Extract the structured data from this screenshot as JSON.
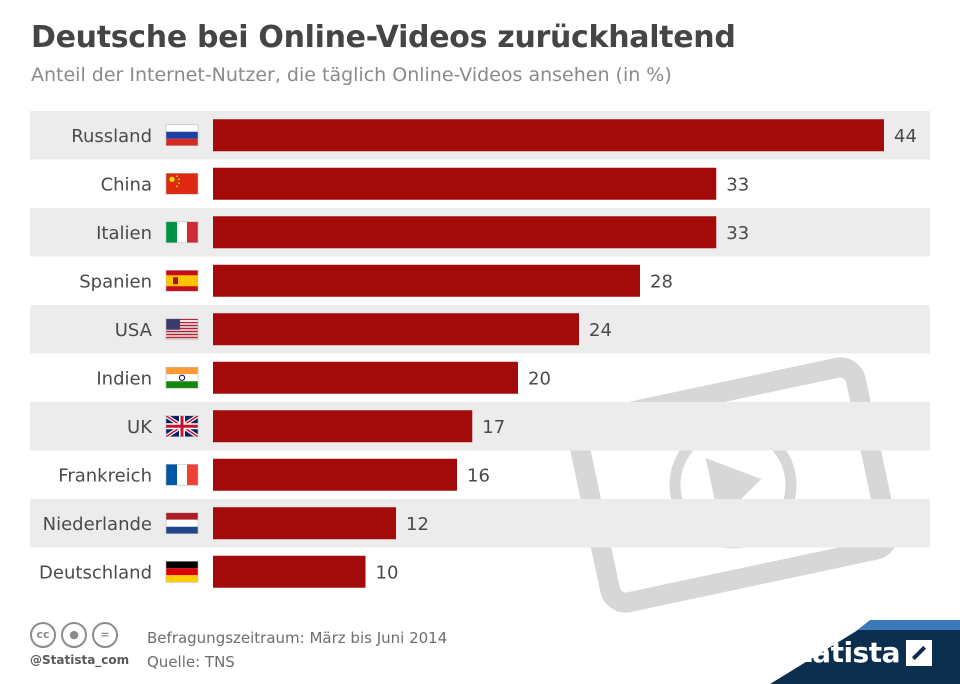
{
  "header": {
    "title": "Deutsche bei Online-Videos zurückhaltend",
    "subtitle": "Anteil der Internet-Nutzer, die täglich Online-Videos ansehen (in %)"
  },
  "chart_data": {
    "type": "bar",
    "orientation": "horizontal",
    "categories": [
      "Russland",
      "China",
      "Italien",
      "Spanien",
      "USA",
      "Indien",
      "UK",
      "Frankreich",
      "Niederlande",
      "Deutschland"
    ],
    "values": [
      44,
      33,
      33,
      28,
      24,
      20,
      17,
      16,
      12,
      10
    ],
    "flags": [
      "russia-flag-icon",
      "china-flag-icon",
      "italy-flag-icon",
      "spain-flag-icon",
      "usa-flag-icon",
      "india-flag-icon",
      "uk-flag-icon",
      "france-flag-icon",
      "netherlands-flag-icon",
      "germany-flag-icon"
    ],
    "bar_color": "#a30b0b",
    "row_stripe_color": "#ececec",
    "xlim": [
      0,
      44
    ],
    "grid": false,
    "legend": "none"
  },
  "footer": {
    "handle": "@Statista_com",
    "period": "Befragungszeitraum: März bis Juni 2014",
    "source": "Quelle: TNS",
    "brand": "statista",
    "license_icons": [
      "cc-icon",
      "by-icon",
      "nd-icon"
    ]
  },
  "colors": {
    "title": "#454545",
    "subtitle": "#8a8a8a",
    "brand_dark": "#0d2f4f",
    "brand_accent": "#3a7ab8"
  }
}
